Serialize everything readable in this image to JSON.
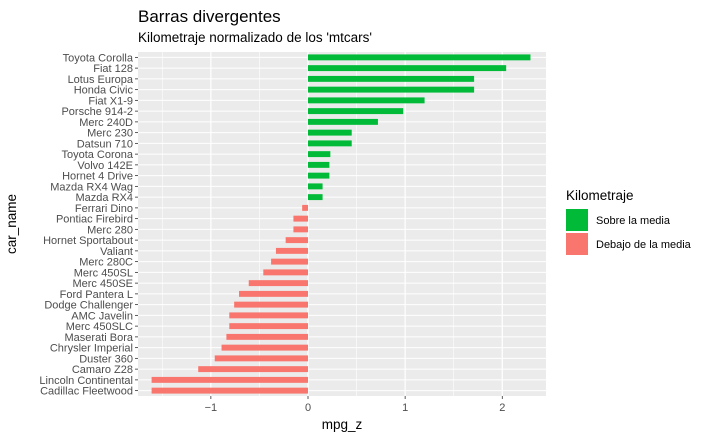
{
  "chart_data": {
    "type": "bar",
    "orientation": "horizontal",
    "title": "Barras divergentes",
    "subtitle": "Kilometraje normalizado de los 'mtcars'",
    "xlabel": "mpg_z",
    "ylabel": "car_name",
    "xlim": [
      -1.75,
      2.45
    ],
    "x_ticks": [
      -1,
      0,
      1,
      2
    ],
    "grid": true,
    "legend": {
      "title": "Kilometraje",
      "position": "right",
      "items": [
        {
          "label": "Sobre la media",
          "color": "#00BA38"
        },
        {
          "label": "Debajo de la media",
          "color": "#F8766D"
        }
      ]
    },
    "colors": {
      "above": "#00BA38",
      "below": "#F8766D",
      "panel": "#EBEBEB",
      "grid": "#FFFFFF"
    },
    "categories": [
      "Toyota Corolla",
      "Fiat 128",
      "Lotus Europa",
      "Honda Civic",
      "Fiat X1-9",
      "Porsche 914-2",
      "Merc 240D",
      "Merc 230",
      "Datsun 710",
      "Toyota Corona",
      "Volvo 142E",
      "Hornet 4 Drive",
      "Mazda RX4 Wag",
      "Mazda RX4",
      "Ferrari Dino",
      "Pontiac Firebird",
      "Merc 280",
      "Hornet Sportabout",
      "Valiant",
      "Merc 280C",
      "Merc 450SL",
      "Merc 450SE",
      "Ford Pantera L",
      "Dodge Challenger",
      "AMC Javelin",
      "Merc 450SLC",
      "Maserati Bora",
      "Chrysler Imperial",
      "Duster 360",
      "Camaro Z28",
      "Lincoln Continental",
      "Cadillac Fleetwood"
    ],
    "values": [
      2.29,
      2.04,
      1.71,
      1.71,
      1.2,
      0.98,
      0.72,
      0.45,
      0.45,
      0.23,
      0.22,
      0.22,
      0.15,
      0.15,
      -0.06,
      -0.15,
      -0.15,
      -0.23,
      -0.33,
      -0.38,
      -0.46,
      -0.61,
      -0.71,
      -0.76,
      -0.81,
      -0.81,
      -0.84,
      -0.89,
      -0.96,
      -1.13,
      -1.61,
      -1.61
    ]
  }
}
